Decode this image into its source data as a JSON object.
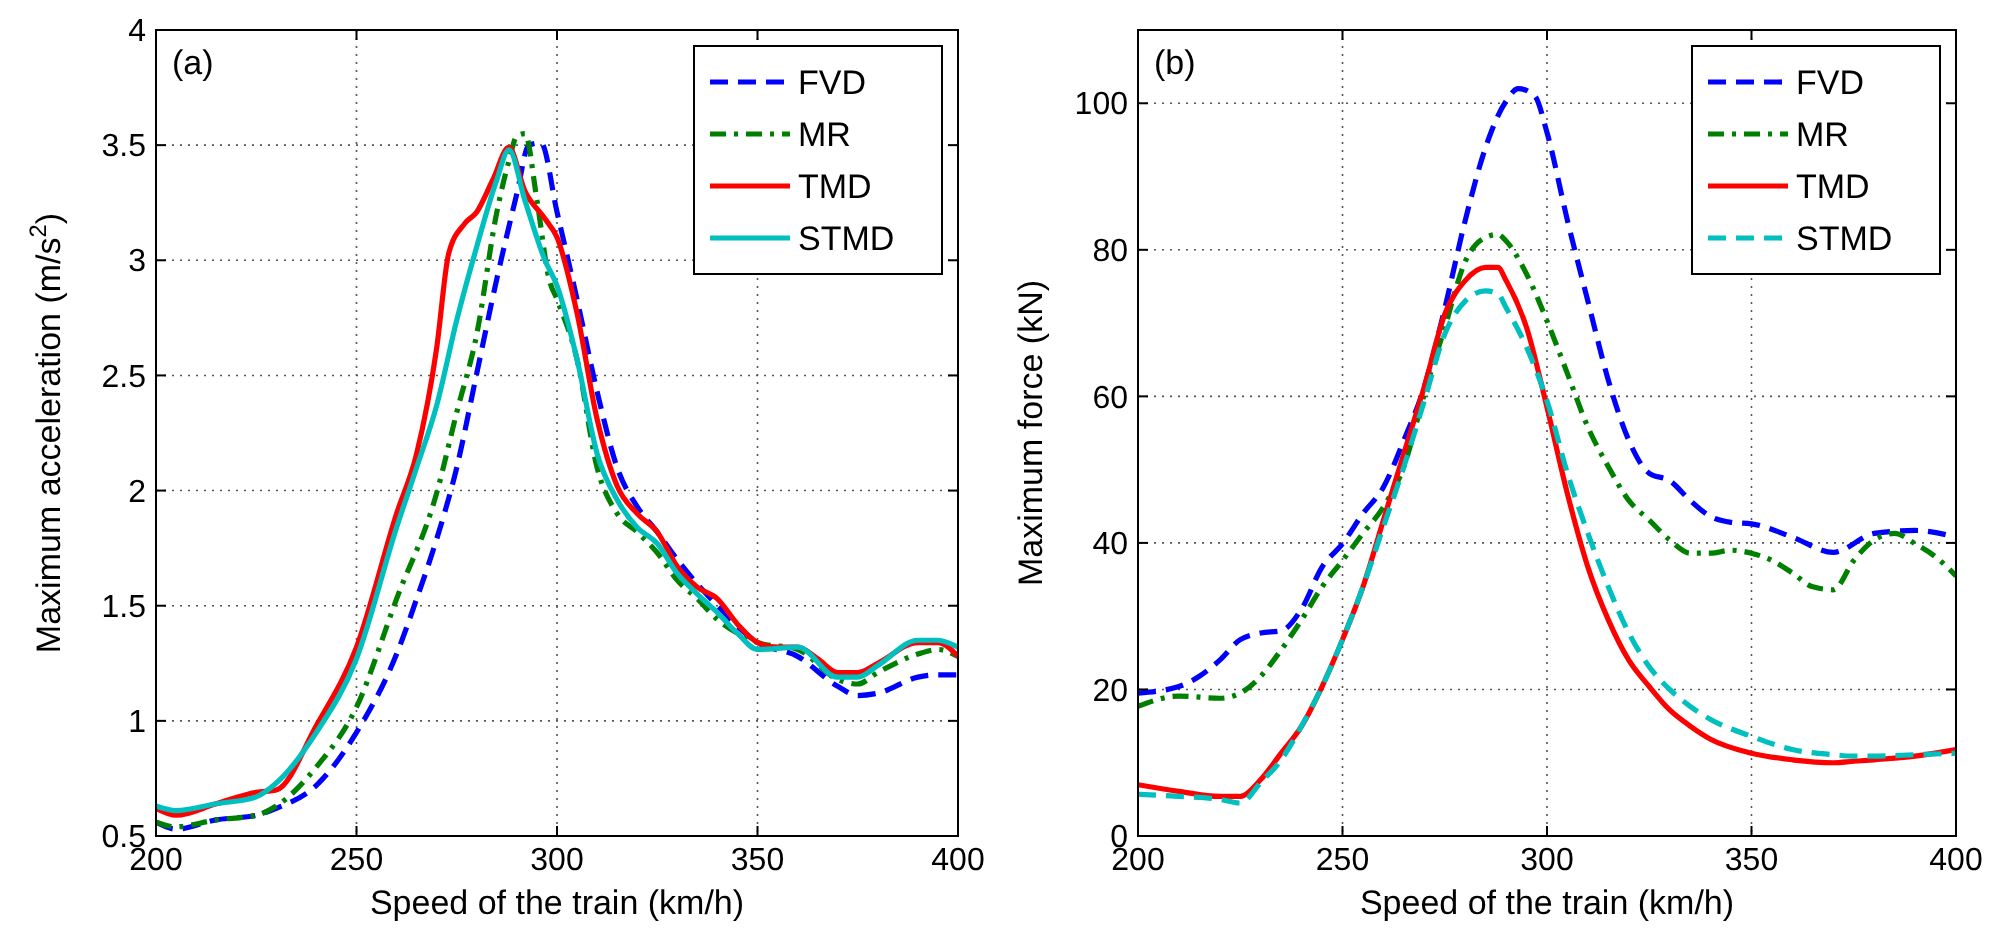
{
  "chart_data": [
    {
      "type": "line",
      "xlabel": "Speed of the train (km/h)",
      "ylabel": "Maximum acceleration (m/s$^{2}$)",
      "annotations": [
        "(a)"
      ],
      "xlim": [
        200,
        400
      ],
      "ylim": [
        0.5,
        4
      ],
      "xticks": [
        200,
        250,
        300,
        350,
        400
      ],
      "yticks": [
        0.5,
        1,
        1.5,
        2,
        2.5,
        3,
        3.5,
        4
      ],
      "grid": true,
      "legend": "top right",
      "series": [
        {
          "name": "FVD",
          "color": "#0000ff",
          "line_style": "dashed",
          "x": [
            200,
            205,
            215,
            225,
            230,
            240,
            250,
            260,
            265,
            270,
            275,
            280,
            285,
            290,
            293,
            296,
            300,
            305,
            310,
            315,
            320,
            325,
            330,
            340,
            350,
            360,
            370,
            375,
            380,
            390,
            395,
            400
          ],
          "values": [
            0.56,
            0.53,
            0.57,
            0.59,
            0.62,
            0.72,
            0.95,
            1.29,
            1.53,
            1.79,
            2.1,
            2.51,
            2.92,
            3.29,
            3.5,
            3.51,
            3.21,
            2.83,
            2.43,
            2.1,
            1.93,
            1.82,
            1.7,
            1.5,
            1.34,
            1.28,
            1.15,
            1.11,
            1.12,
            1.19,
            1.2,
            1.2
          ]
        },
        {
          "name": "MR",
          "color": "#008000",
          "line_style": "dashdot",
          "x": [
            200,
            205,
            215,
            225,
            230,
            240,
            250,
            260,
            270,
            275,
            280,
            285,
            288,
            290,
            292,
            295,
            298,
            300,
            305,
            310,
            315,
            320,
            325,
            330,
            335,
            340,
            345,
            350,
            360,
            370,
            375,
            380,
            390,
            395,
            400
          ],
          "values": [
            0.56,
            0.54,
            0.57,
            0.59,
            0.63,
            0.8,
            1.06,
            1.53,
            1.99,
            2.34,
            2.68,
            3.21,
            3.43,
            3.54,
            3.55,
            3.26,
            2.92,
            2.83,
            2.57,
            2.1,
            1.9,
            1.82,
            1.73,
            1.61,
            1.53,
            1.44,
            1.38,
            1.34,
            1.31,
            1.18,
            1.16,
            1.21,
            1.29,
            1.31,
            1.28
          ]
        },
        {
          "name": "TMD",
          "color": "#ff0000",
          "line_style": "solid",
          "x": [
            200,
            205,
            215,
            225,
            230,
            240,
            250,
            260,
            265,
            270,
            273,
            277,
            280,
            284,
            288,
            292,
            297,
            300,
            305,
            310,
            315,
            320,
            325,
            330,
            335,
            340,
            345,
            350,
            355,
            360,
            365,
            370,
            375,
            380,
            390,
            395,
            400
          ],
          "values": [
            0.62,
            0.59,
            0.64,
            0.69,
            0.7,
            0.98,
            1.32,
            1.9,
            2.16,
            2.62,
            3.03,
            3.16,
            3.21,
            3.35,
            3.49,
            3.3,
            3.18,
            3.1,
            2.77,
            2.31,
            2.02,
            1.9,
            1.82,
            1.67,
            1.58,
            1.53,
            1.42,
            1.34,
            1.32,
            1.32,
            1.27,
            1.21,
            1.21,
            1.25,
            1.34,
            1.34,
            1.28
          ]
        },
        {
          "name": "STMD",
          "color": "#00bfbf",
          "line_style": "solid",
          "x": [
            200,
            205,
            215,
            225,
            230,
            240,
            250,
            260,
            265,
            270,
            275,
            280,
            285,
            288,
            292,
            297,
            300,
            305,
            310,
            315,
            320,
            325,
            330,
            335,
            340,
            345,
            350,
            360,
            370,
            375,
            380,
            390,
            395,
            400
          ],
          "values": [
            0.63,
            0.61,
            0.64,
            0.67,
            0.73,
            0.95,
            1.27,
            1.84,
            2.1,
            2.37,
            2.74,
            3.06,
            3.35,
            3.48,
            3.26,
            3.0,
            2.89,
            2.57,
            2.16,
            1.96,
            1.84,
            1.77,
            1.64,
            1.55,
            1.47,
            1.38,
            1.31,
            1.32,
            1.19,
            1.19,
            1.24,
            1.35,
            1.35,
            1.32
          ]
        }
      ]
    },
    {
      "type": "line",
      "xlabel": "Speed of the train (km/h)",
      "ylabel": "Maximum force (kN)",
      "annotations": [
        "(b)"
      ],
      "xlim": [
        200,
        400
      ],
      "ylim": [
        0,
        110
      ],
      "xticks": [
        200,
        250,
        300,
        350,
        400
      ],
      "yticks": [
        0,
        20,
        40,
        60,
        80,
        100
      ],
      "grid": true,
      "legend": "top right",
      "series": [
        {
          "name": "FVD",
          "color": "#0000ff",
          "line_style": "dashed",
          "x": [
            200,
            210,
            215,
            220,
            225,
            230,
            235,
            240,
            245,
            250,
            255,
            260,
            265,
            270,
            275,
            280,
            285,
            290,
            293,
            297,
            300,
            305,
            310,
            315,
            320,
            325,
            330,
            335,
            340,
            345,
            350,
            360,
            370,
            380,
            390,
            400
          ],
          "values": [
            19.5,
            20.4,
            21.8,
            24,
            26.8,
            27.7,
            28,
            31,
            36.7,
            39.9,
            44,
            47.6,
            54,
            61.3,
            72,
            84,
            94,
            100.3,
            102,
            101,
            96,
            84,
            73,
            62.2,
            54,
            49.5,
            48.5,
            45.8,
            43.6,
            42.8,
            42.6,
            40.8,
            38.7,
            41.3,
            41.7,
            40.8
          ]
        },
        {
          "name": "MR",
          "color": "#008000",
          "line_style": "dashdot",
          "x": [
            200,
            210,
            220,
            225,
            230,
            235,
            240,
            245,
            250,
            255,
            260,
            265,
            270,
            275,
            280,
            285,
            288,
            290,
            295,
            300,
            305,
            310,
            315,
            320,
            325,
            330,
            335,
            340,
            345,
            350,
            355,
            360,
            365,
            370,
            375,
            380,
            385,
            390,
            395,
            400
          ],
          "values": [
            17.7,
            19.1,
            18.8,
            19.5,
            21.8,
            25.4,
            29.5,
            34,
            37.6,
            41.3,
            44.9,
            50.4,
            60.3,
            69.4,
            78.4,
            81.7,
            82.1,
            81.2,
            76.7,
            70.3,
            63.1,
            55.8,
            50.4,
            45.8,
            43.1,
            40.4,
            38.6,
            38.6,
            39,
            38.6,
            37.6,
            35.9,
            34,
            33.6,
            37.6,
            40.4,
            41.3,
            39.9,
            38.1,
            35.5
          ]
        },
        {
          "name": "TMD",
          "color": "#ff0000",
          "line_style": "solid",
          "x": [
            200,
            210,
            220,
            225,
            230,
            235,
            240,
            245,
            250,
            255,
            260,
            265,
            270,
            275,
            280,
            285,
            288,
            290,
            295,
            300,
            305,
            310,
            315,
            320,
            325,
            330,
            335,
            340,
            350,
            360,
            370,
            375,
            380,
            390,
            400
          ],
          "values": [
            7,
            6.1,
            5.4,
            5.4,
            7.7,
            11.3,
            15,
            20.4,
            26.8,
            34,
            43.1,
            52.2,
            61.3,
            71.2,
            75.8,
            77.6,
            77.6,
            75.8,
            69.4,
            58.5,
            46.7,
            36.7,
            29.5,
            24,
            20.4,
            17.2,
            15,
            13.2,
            11.3,
            10.4,
            10,
            10.2,
            10.4,
            10.9,
            11.8
          ]
        },
        {
          "name": "STMD",
          "color": "#00bfbf",
          "line_style": "dashed",
          "x": [
            200,
            210,
            220,
            225,
            230,
            235,
            240,
            245,
            250,
            255,
            260,
            265,
            270,
            275,
            280,
            285,
            288,
            290,
            295,
            300,
            305,
            310,
            315,
            320,
            325,
            330,
            335,
            340,
            350,
            360,
            370,
            375,
            380,
            390,
            400
          ],
          "values": [
            5.7,
            5.4,
            5,
            4.5,
            7.3,
            10.4,
            15,
            20.4,
            26.8,
            34,
            42.2,
            50.4,
            59.4,
            68.5,
            73,
            74.4,
            74,
            72.1,
            66.7,
            59.4,
            49.5,
            41.3,
            34,
            27.7,
            23.1,
            20,
            17.7,
            15.9,
            13.6,
            11.8,
            11.1,
            10.9,
            10.9,
            11.1,
            11.3
          ]
        }
      ]
    }
  ]
}
